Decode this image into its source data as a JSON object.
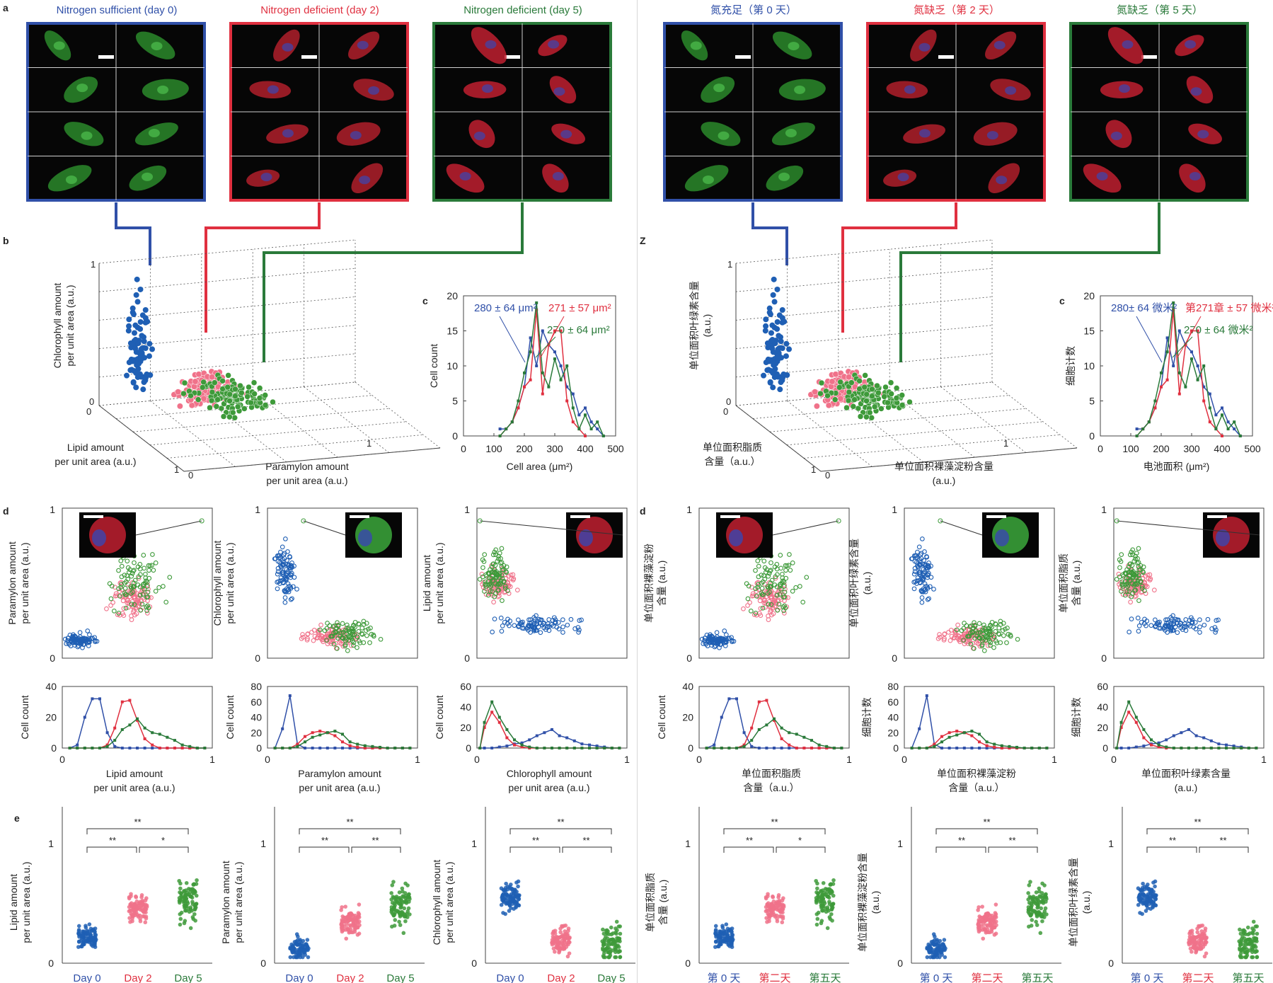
{
  "colors": {
    "blue": "#3050a8",
    "red": "#e03040",
    "green": "#2a7a3a",
    "blue_dot": "#1f5fb4",
    "red_dot": "#f0728a",
    "green_dot": "#3e9a3a"
  },
  "panels": [
    {
      "id": "english",
      "letters": {
        "a": "a",
        "b": "b",
        "c": "c",
        "d": "d",
        "e": "e"
      },
      "image_titles": [
        "Nitrogen sufficient (day 0)",
        "Nitrogen deficient (day 2)",
        "Nitrogen deficient (day 5)"
      ],
      "b_axes": {
        "z": [
          "Chlorophyll amount",
          "per unit area (a.u.)"
        ],
        "lipid": [
          "Lipid amount",
          "per unit area (a.u.)"
        ],
        "paramylon": [
          "Paramylon amount",
          "per unit area (a.u.)"
        ]
      },
      "c": {
        "xlabel": "Cell area (μm²)",
        "ylabel": "Cell count",
        "ann": [
          "280 ± 64 μm²",
          "271 ± 57 μm²",
          "270 ± 64 μm²"
        ]
      },
      "d_scatter_ylabels": [
        [
          "Paramylon amount",
          "per unit area (a.u.)"
        ],
        [
          "Chlorophyll amount",
          "per unit area (a.u.)"
        ],
        [
          "Lipid amount",
          "per unit area (a.u.)"
        ]
      ],
      "d_hist_ylabel": [
        "Cell count",
        "Cell count",
        "Cell count"
      ],
      "d_hist_xlabels": [
        [
          "Lipid amount",
          "per unit area (a.u.)"
        ],
        [
          "Paramylon amount",
          "per unit area (a.u.)"
        ],
        [
          "Chlorophyll amount",
          "per unit area (a.u.)"
        ]
      ],
      "e_ylabels": [
        [
          "Lipid amount",
          "per unit area (a.u.)"
        ],
        [
          "Paramylon amount",
          "per unit area (a.u.)"
        ],
        [
          "Chlorophyll amount",
          "per unit area (a.u.)"
        ]
      ],
      "e_days": [
        "Day 0",
        "Day 2",
        "Day 5"
      ],
      "e_sig": [
        [
          "**",
          "*",
          "**"
        ],
        [
          "**",
          "**",
          "**"
        ],
        [
          "**",
          "**",
          "**"
        ]
      ]
    },
    {
      "id": "chinese",
      "letters": {
        "a": "",
        "b": "Z",
        "c": "c",
        "d": "d",
        "e": ""
      },
      "image_titles": [
        "氮充足（第 0 天）",
        "氮缺乏（第 2 天）",
        "氮缺乏（第 5 天）"
      ],
      "b_axes": {
        "z": [
          "单位面积叶绿素含量",
          "(a.u.)"
        ],
        "lipid": [
          "单位面积脂质",
          "含量（a.u.）"
        ],
        "paramylon": [
          "单位面积裸藻淀粉含量",
          "(a.u.)"
        ]
      },
      "c": {
        "xlabel": "电池面积 (μm²)",
        "ylabel": "细胞计数",
        "ann": [
          "280± 64 微米²",
          "第271章 ± 57 微米²",
          "270 ± 64 微米²"
        ]
      },
      "d_scatter_ylabels": [
        [
          "单位面积裸藻淀粉",
          "含量 (a.u.)"
        ],
        [
          "单位面积叶绿素含量",
          "(a.u.)"
        ],
        [
          "单位面积脂质",
          "含量 (a.u.)"
        ]
      ],
      "d_hist_ylabel": [
        "Cell count",
        "细胞计数",
        "细胞计数"
      ],
      "d_hist_xlabels": [
        [
          "单位面积脂质",
          "含量（a.u.）"
        ],
        [
          "单位面积裸藻淀粉",
          "含量（a.u.）"
        ],
        [
          "单位面积叶绿素含量",
          "(a.u.)"
        ]
      ],
      "e_ylabels": [
        [
          "单位面积脂质",
          "含量 (a.u.)"
        ],
        [
          "单位面积裸藻淀粉含量",
          "(a.u.)"
        ],
        [
          "单位面积叶绿素含量",
          "(a.u.)"
        ]
      ],
      "e_days": [
        "第 0 天",
        "第二天",
        "第五天"
      ],
      "e_sig": [
        [
          "**",
          "*",
          "**"
        ],
        [
          "**",
          "**",
          "**"
        ],
        [
          "**",
          "**",
          "**"
        ]
      ]
    }
  ],
  "chart_data": [
    {
      "type": "line",
      "panel": "c",
      "xlabel": "Cell area (μm²)",
      "ylabel": "Cell count",
      "xlim": [
        0,
        500
      ],
      "ylim": [
        0,
        20
      ],
      "xticks": [
        0,
        100,
        200,
        300,
        400,
        500
      ],
      "yticks": [
        0,
        5,
        10,
        15,
        20
      ],
      "series": [
        {
          "name": "280 ± 64 μm²",
          "color": "#3050a8",
          "x": [
            120,
            140,
            160,
            180,
            200,
            220,
            240,
            260,
            280,
            300,
            320,
            340,
            360,
            380,
            400,
            420,
            440,
            460
          ],
          "y": [
            1,
            1,
            2,
            4,
            7,
            14,
            10,
            15,
            13,
            12,
            10,
            7,
            6,
            3,
            4,
            2,
            1,
            0
          ]
        },
        {
          "name": "271 ± 57 μm²",
          "color": "#e03040",
          "x": [
            120,
            140,
            160,
            180,
            200,
            220,
            240,
            260,
            280,
            300,
            320,
            340,
            360,
            380,
            400
          ],
          "y": [
            0,
            1,
            2,
            4,
            7,
            8,
            18,
            6,
            13,
            15,
            15,
            5,
            2,
            1,
            0
          ]
        },
        {
          "name": "270 ± 64 μm²",
          "color": "#2a7a3a",
          "x": [
            120,
            140,
            160,
            180,
            200,
            220,
            240,
            260,
            280,
            300,
            320,
            340,
            360,
            380,
            400,
            420,
            440,
            460
          ],
          "y": [
            0,
            1,
            2,
            5,
            9,
            12,
            19,
            9,
            7,
            11,
            8,
            10,
            4,
            1,
            3,
            1,
            2,
            0
          ]
        }
      ]
    },
    {
      "type": "scatter",
      "panel": "d",
      "xlim": [
        0,
        1
      ],
      "ylim": [
        0,
        1
      ],
      "series": [
        {
          "name": "Nitrogen sufficient (day 0)",
          "cluster": {
            "x": 0.12,
            "y": 0.12
          }
        },
        {
          "name": "Nitrogen deficient (day 2)",
          "cluster": {
            "x": 0.45,
            "y": 0.4
          }
        },
        {
          "name": "Nitrogen deficient (day 5)",
          "cluster": {
            "x": 0.5,
            "y": 0.5
          }
        }
      ]
    },
    {
      "type": "line",
      "panel": "d-hist-1",
      "xlabel": "Lipid amount per unit area (a.u.)",
      "ylabel": "Cell count",
      "xlim": [
        0,
        1
      ],
      "ylim": [
        0,
        40
      ],
      "yticks": [
        0,
        20,
        40
      ],
      "x": [
        0.05,
        0.1,
        0.15,
        0.2,
        0.25,
        0.3,
        0.35,
        0.4,
        0.45,
        0.5,
        0.55,
        0.6,
        0.65,
        0.7,
        0.75,
        0.8,
        0.85,
        0.9,
        0.95
      ],
      "series": [
        {
          "name": "Nitrogen sufficient (day 0)",
          "values": [
            0,
            2,
            20,
            32,
            32,
            10,
            1,
            0,
            0,
            0,
            0,
            0,
            0,
            0,
            0,
            0,
            0,
            0,
            0
          ]
        },
        {
          "name": "Nitrogen deficient (day 2)",
          "values": [
            0,
            0,
            0,
            0,
            0,
            2,
            13,
            30,
            31,
            18,
            6,
            2,
            0,
            0,
            0,
            0,
            0,
            0,
            0
          ]
        },
        {
          "name": "Nitrogen deficient (day 5)",
          "values": [
            0,
            0,
            0,
            0,
            0,
            1,
            5,
            12,
            15,
            19,
            13,
            10,
            9,
            7,
            5,
            2,
            1,
            0,
            0
          ]
        }
      ]
    },
    {
      "type": "line",
      "panel": "d-hist-2",
      "xlabel": "Paramylon amount per unit area (a.u.)",
      "ylabel": "Cell count",
      "xlim": [
        0,
        1
      ],
      "ylim": [
        0,
        80
      ],
      "yticks": [
        0,
        20,
        40,
        60,
        80
      ],
      "x": [
        0.05,
        0.1,
        0.15,
        0.2,
        0.25,
        0.3,
        0.35,
        0.4,
        0.45,
        0.5,
        0.55,
        0.6,
        0.65,
        0.7,
        0.75,
        0.8,
        0.85,
        0.9,
        0.95
      ],
      "series": [
        {
          "name": "Nitrogen sufficient (day 0)",
          "values": [
            0,
            25,
            68,
            5,
            0,
            0,
            0,
            0,
            0,
            0,
            0,
            0,
            0,
            0,
            0,
            0,
            0,
            0,
            0
          ]
        },
        {
          "name": "Nitrogen deficient (day 2)",
          "values": [
            0,
            0,
            0,
            5,
            15,
            20,
            22,
            20,
            16,
            8,
            3,
            1,
            0,
            0,
            0,
            0,
            0,
            0,
            0
          ]
        },
        {
          "name": "Nitrogen deficient (day 5)",
          "values": [
            0,
            0,
            0,
            2,
            8,
            14,
            17,
            20,
            22,
            18,
            8,
            5,
            3,
            2,
            1,
            0,
            0,
            0,
            0
          ]
        }
      ]
    },
    {
      "type": "line",
      "panel": "d-hist-3",
      "xlabel": "Chlorophyll amount per unit area (a.u.)",
      "ylabel": "Cell count",
      "xlim": [
        0,
        1
      ],
      "ylim": [
        0,
        60
      ],
      "yticks": [
        0,
        20,
        40,
        60
      ],
      "x": [
        0.02,
        0.05,
        0.1,
        0.15,
        0.2,
        0.25,
        0.3,
        0.35,
        0.4,
        0.45,
        0.5,
        0.55,
        0.6,
        0.65,
        0.7,
        0.75,
        0.8,
        0.85,
        0.9,
        0.95
      ],
      "series": [
        {
          "name": "Nitrogen sufficient (day 0)",
          "values": [
            0,
            0,
            0,
            1,
            2,
            4,
            5,
            8,
            12,
            15,
            18,
            12,
            10,
            7,
            4,
            3,
            2,
            1,
            0,
            0
          ]
        },
        {
          "name": "Nitrogen deficient (day 2)",
          "values": [
            0,
            20,
            35,
            25,
            10,
            3,
            1,
            0,
            0,
            0,
            0,
            0,
            0,
            0,
            0,
            0,
            0,
            0,
            0,
            0
          ]
        },
        {
          "name": "Nitrogen deficient (day 5)",
          "values": [
            0,
            25,
            45,
            30,
            18,
            8,
            3,
            1,
            0,
            0,
            0,
            0,
            0,
            0,
            0,
            0,
            0,
            0,
            0,
            0
          ]
        }
      ]
    },
    {
      "type": "scatter",
      "panel": "e",
      "ylim": [
        0,
        1
      ],
      "yticks": [
        0,
        1
      ],
      "categories": [
        "Day 0",
        "Day 2",
        "Day 5"
      ],
      "groups": [
        {
          "name": "Lipid amount per unit area (a.u.)",
          "medians": [
            0.22,
            0.45,
            0.53
          ]
        },
        {
          "name": "Paramylon amount per unit area (a.u.)",
          "medians": [
            0.12,
            0.36,
            0.48
          ]
        },
        {
          "name": "Chlorophyll amount per unit area (a.u.)",
          "medians": [
            0.55,
            0.2,
            0.16
          ]
        }
      ]
    }
  ]
}
